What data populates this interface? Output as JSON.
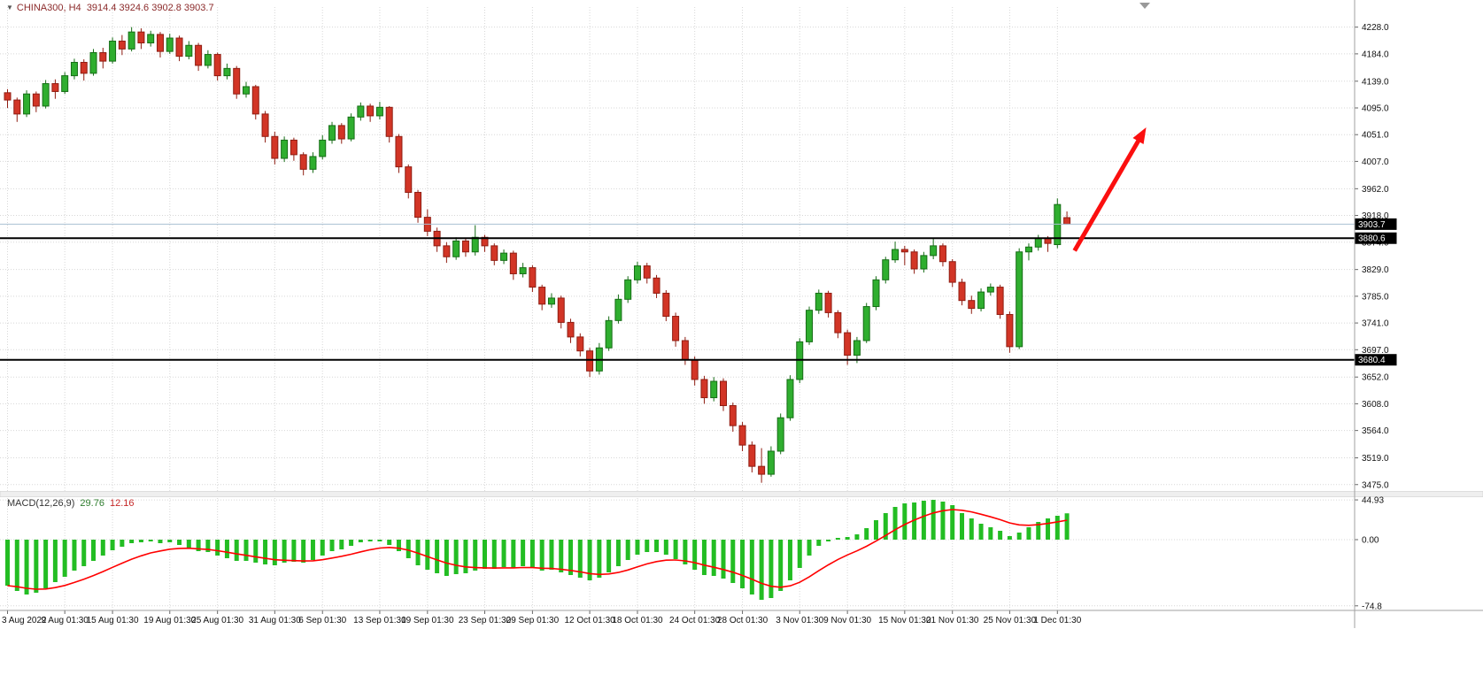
{
  "header": {
    "dropdown_icon": "▼",
    "symbol": "CHINA300, H4",
    "ohlc_text": "3914.4 3924.6 3902.8 3903.7"
  },
  "macd_header": {
    "name": "MACD(12,26,9)",
    "main_value": "29.76",
    "signal_value": "12.16"
  },
  "colors": {
    "header_text": "#8b2a2a",
    "bull": "#2fae2f",
    "bull_stroke": "#166d16",
    "bear": "#d23526",
    "bear_stroke": "#8f1d12",
    "grid": "#d7d7d7",
    "axis_text": "#111111",
    "hline": "#000000",
    "current_price_line": "#a9c0d2",
    "tag_bg": "#000000",
    "tag_text": "#ffffff",
    "macd_bar": "#23bd23",
    "signal": "#ff0000",
    "arrow": "#fb0f0f",
    "macd_value_main": "#2e7d2e",
    "macd_value_signal": "#c62828",
    "macd_name_text": "#333333"
  },
  "chart_data": [
    {
      "type": "candlestick",
      "title": "CHINA300, H4",
      "current_bar": {
        "open": 3914.4,
        "high": 3924.6,
        "low": 3902.8,
        "close": 3903.7
      },
      "ylim": [
        3463,
        4261
      ],
      "y_axis_ticks": [
        "4228.0",
        "4184.0",
        "4139.0",
        "4095.0",
        "4051.0",
        "4007.0",
        "3962.0",
        "3918.0",
        "3874.0",
        "3829.0",
        "3785.0",
        "3741.0",
        "3697.0",
        "3652.0",
        "3608.0",
        "3564.0",
        "3519.0",
        "3475.0"
      ],
      "x_labels": [
        "3 Aug 2022",
        "9 Aug 01:30",
        "15 Aug 01:30",
        "19 Aug 01:30",
        "25 Aug 01:30",
        "31 Aug 01:30",
        "6 Sep 01:30",
        "13 Sep 01:30",
        "19 Sep 01:30",
        "23 Sep 01:30",
        "29 Sep 01:30",
        "12 Oct 01:30",
        "18 Oct 01:30",
        "24 Oct 01:30",
        "28 Oct 01:30",
        "3 Nov 01:30",
        "9 Nov 01:30",
        "15 Nov 01:30",
        "21 Nov 01:30",
        "25 Nov 01:30",
        "1 Dec 01:30"
      ],
      "x_label_indices": [
        0,
        6,
        11,
        17,
        22,
        28,
        33,
        39,
        44,
        50,
        55,
        61,
        66,
        72,
        77,
        83,
        88,
        94,
        99,
        105,
        110
      ],
      "candles": [
        [
          4120,
          4126,
          4095,
          4108
        ],
        [
          4108,
          4112,
          4072,
          4085
        ],
        [
          4085,
          4124,
          4080,
          4118
        ],
        [
          4118,
          4122,
          4088,
          4098
        ],
        [
          4098,
          4141,
          4094,
          4135
        ],
        [
          4135,
          4142,
          4110,
          4122
        ],
        [
          4122,
          4154,
          4118,
          4148
        ],
        [
          4148,
          4176,
          4142,
          4170
        ],
        [
          4170,
          4175,
          4140,
          4152
        ],
        [
          4152,
          4192,
          4148,
          4186
        ],
        [
          4186,
          4194,
          4160,
          4172
        ],
        [
          4172,
          4211,
          4168,
          4205
        ],
        [
          4205,
          4215,
          4182,
          4192
        ],
        [
          4192,
          4228,
          4188,
          4220
        ],
        [
          4220,
          4226,
          4192,
          4202
        ],
        [
          4202,
          4222,
          4196,
          4216
        ],
        [
          4216,
          4220,
          4178,
          4188
        ],
        [
          4188,
          4217,
          4184,
          4210
        ],
        [
          4210,
          4214,
          4172,
          4180
        ],
        [
          4180,
          4205,
          4175,
          4198
        ],
        [
          4198,
          4202,
          4156,
          4165
        ],
        [
          4165,
          4190,
          4160,
          4183
        ],
        [
          4183,
          4186,
          4140,
          4148
        ],
        [
          4148,
          4168,
          4142,
          4160
        ],
        [
          4160,
          4164,
          4110,
          4118
        ],
        [
          4118,
          4138,
          4112,
          4130
        ],
        [
          4130,
          4133,
          4076,
          4085
        ],
        [
          4085,
          4090,
          4038,
          4048
        ],
        [
          4048,
          4056,
          4002,
          4012
        ],
        [
          4012,
          4048,
          4006,
          4042
        ],
        [
          4042,
          4046,
          4008,
          4018
        ],
        [
          4018,
          4022,
          3984,
          3994
        ],
        [
          3994,
          4022,
          3988,
          4015
        ],
        [
          4015,
          4050,
          4010,
          4042
        ],
        [
          4042,
          4072,
          4036,
          4066
        ],
        [
          4066,
          4070,
          4036,
          4044
        ],
        [
          4044,
          4086,
          4040,
          4080
        ],
        [
          4080,
          4104,
          4074,
          4098
        ],
        [
          4098,
          4102,
          4072,
          4082
        ],
        [
          4082,
          4105,
          4076,
          4096
        ],
        [
          4096,
          4098,
          4038,
          4048
        ],
        [
          4048,
          4052,
          3988,
          3998
        ],
        [
          3998,
          4002,
          3946,
          3956
        ],
        [
          3956,
          3960,
          3906,
          3915
        ],
        [
          3915,
          3928,
          3884,
          3892
        ],
        [
          3892,
          3898,
          3858,
          3868
        ],
        [
          3868,
          3874,
          3840,
          3850
        ],
        [
          3850,
          3882,
          3845,
          3876
        ],
        [
          3876,
          3880,
          3850,
          3858
        ],
        [
          3858,
          3902,
          3852,
          3882
        ],
        [
          3882,
          3886,
          3858,
          3868
        ],
        [
          3868,
          3872,
          3836,
          3844
        ],
        [
          3844,
          3862,
          3838,
          3856
        ],
        [
          3856,
          3860,
          3812,
          3822
        ],
        [
          3822,
          3840,
          3816,
          3832
        ],
        [
          3832,
          3836,
          3792,
          3800
        ],
        [
          3800,
          3804,
          3762,
          3772
        ],
        [
          3772,
          3790,
          3766,
          3782
        ],
        [
          3782,
          3786,
          3732,
          3742
        ],
        [
          3742,
          3748,
          3708,
          3718
        ],
        [
          3718,
          3724,
          3686,
          3695
        ],
        [
          3695,
          3700,
          3652,
          3662
        ],
        [
          3662,
          3708,
          3656,
          3700
        ],
        [
          3700,
          3752,
          3695,
          3745
        ],
        [
          3745,
          3788,
          3740,
          3780
        ],
        [
          3780,
          3818,
          3774,
          3812
        ],
        [
          3812,
          3842,
          3806,
          3835
        ],
        [
          3835,
          3840,
          3806,
          3815
        ],
        [
          3815,
          3820,
          3782,
          3790
        ],
        [
          3790,
          3795,
          3744,
          3752
        ],
        [
          3752,
          3758,
          3702,
          3712
        ],
        [
          3712,
          3718,
          3672,
          3680
        ],
        [
          3680,
          3686,
          3638,
          3648
        ],
        [
          3648,
          3654,
          3608,
          3618
        ],
        [
          3618,
          3652,
          3612,
          3645
        ],
        [
          3645,
          3650,
          3596,
          3605
        ],
        [
          3605,
          3610,
          3562,
          3572
        ],
        [
          3572,
          3578,
          3530,
          3540
        ],
        [
          3540,
          3546,
          3495,
          3505
        ],
        [
          3505,
          3535,
          3478,
          3492
        ],
        [
          3492,
          3538,
          3488,
          3530
        ],
        [
          3530,
          3592,
          3525,
          3585
        ],
        [
          3585,
          3655,
          3580,
          3648
        ],
        [
          3648,
          3716,
          3642,
          3710
        ],
        [
          3710,
          3768,
          3705,
          3762
        ],
        [
          3762,
          3796,
          3756,
          3790
        ],
        [
          3790,
          3794,
          3750,
          3758
        ],
        [
          3758,
          3762,
          3716,
          3725
        ],
        [
          3725,
          3730,
          3672,
          3688
        ],
        [
          3688,
          3718,
          3675,
          3712
        ],
        [
          3712,
          3774,
          3708,
          3768
        ],
        [
          3768,
          3818,
          3762,
          3812
        ],
        [
          3812,
          3850,
          3806,
          3845
        ],
        [
          3845,
          3875,
          3840,
          3862
        ],
        [
          3862,
          3868,
          3836,
          3858
        ],
        [
          3858,
          3862,
          3822,
          3830
        ],
        [
          3830,
          3858,
          3824,
          3852
        ],
        [
          3852,
          3880,
          3846,
          3868
        ],
        [
          3868,
          3872,
          3834,
          3842
        ],
        [
          3842,
          3846,
          3800,
          3808
        ],
        [
          3808,
          3814,
          3770,
          3778
        ],
        [
          3778,
          3786,
          3756,
          3765
        ],
        [
          3765,
          3798,
          3760,
          3792
        ],
        [
          3792,
          3806,
          3786,
          3800
        ],
        [
          3800,
          3804,
          3748,
          3755
        ],
        [
          3755,
          3760,
          3692,
          3702
        ],
        [
          3702,
          3864,
          3698,
          3858
        ],
        [
          3858,
          3872,
          3844,
          3866
        ],
        [
          3866,
          3886,
          3860,
          3880
        ],
        [
          3880,
          3884,
          3858,
          3872
        ],
        [
          3870,
          3946,
          3864,
          3936
        ],
        [
          3914.4,
          3924.6,
          3902.8,
          3903.7
        ]
      ],
      "price_lines": [
        {
          "price": 3903.7,
          "label": "3903.7",
          "type": "current"
        },
        {
          "price": 3880.6,
          "label": "3880.6",
          "type": "hline"
        },
        {
          "price": 3680.4,
          "label": "3680.4",
          "type": "hline"
        }
      ],
      "annotations": [
        {
          "type": "arrow",
          "from": {
            "x_index": 111.8,
            "price": 3860
          },
          "to": {
            "x_index": 119.3,
            "price": 4063
          }
        }
      ]
    },
    {
      "type": "bar",
      "name": "MACD(12,26,9)",
      "last_values": [
        29.76,
        12.16
      ],
      "ylim": [
        -78,
        48
      ],
      "y_axis_ticks": [
        "44.93",
        "0.00",
        "-74.8"
      ],
      "signal_period": 9,
      "macd": [
        -52,
        -58,
        -62,
        -60,
        -55,
        -48,
        -42,
        -35,
        -30,
        -24,
        -18,
        -12,
        -8,
        -4,
        -3,
        -2,
        -4,
        -3,
        -6,
        -9,
        -13,
        -14,
        -18,
        -21,
        -24,
        -24,
        -26,
        -28,
        -29,
        -26,
        -25,
        -26,
        -23,
        -18,
        -13,
        -11,
        -7,
        -3,
        -2,
        -2,
        -6,
        -13,
        -21,
        -29,
        -34,
        -38,
        -41,
        -39,
        -38,
        -35,
        -33,
        -33,
        -31,
        -32,
        -30,
        -32,
        -35,
        -34,
        -37,
        -40,
        -43,
        -46,
        -43,
        -37,
        -30,
        -23,
        -17,
        -14,
        -14,
        -17,
        -22,
        -28,
        -34,
        -40,
        -41,
        -44,
        -49,
        -55,
        -62,
        -68,
        -66,
        -58,
        -46,
        -32,
        -18,
        -7,
        -2,
        2,
        3,
        6,
        13,
        22,
        30,
        37,
        41,
        42,
        44,
        45,
        43,
        39,
        30,
        24,
        18,
        14,
        10,
        4,
        8,
        14,
        20,
        24,
        27,
        29.76
      ]
    }
  ]
}
